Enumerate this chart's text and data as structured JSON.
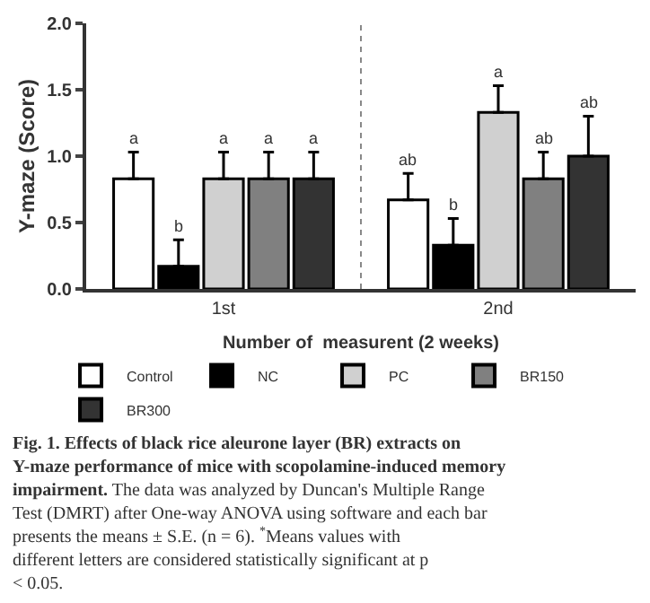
{
  "chart_data": {
    "type": "bar",
    "categories": [
      "1st",
      "2nd"
    ],
    "xlabel": "Number of  measurent (2 weeks)",
    "ylabel": "Y-maze (Score)",
    "ylim": [
      0,
      2
    ],
    "yticks": [
      {
        "value": 0,
        "label": "0.0"
      },
      {
        "value": 0.5,
        "label": "0.5"
      },
      {
        "value": 1,
        "label": "1.0"
      },
      {
        "value": 1.5,
        "label": "1.5"
      },
      {
        "value": 2,
        "label": "2.0"
      }
    ],
    "legend": "bottom",
    "series": [
      {
        "name": "Control",
        "color": "#ffffff",
        "values": [
          0.83,
          0.67
        ],
        "errors": [
          [
            0.83,
            1.03
          ],
          [
            0.67,
            0.87
          ]
        ],
        "value_labels": [
          "a",
          "ab"
        ]
      },
      {
        "name": "NC",
        "color": "#000000",
        "values": [
          0.17,
          0.33
        ],
        "errors": [
          [
            0.17,
            0.37
          ],
          [
            0.33,
            0.53
          ]
        ],
        "value_labels": [
          "b",
          "b"
        ]
      },
      {
        "name": "PC",
        "color": "#d0d0d0",
        "values": [
          0.83,
          1.33
        ],
        "errors": [
          [
            0.83,
            1.03
          ],
          [
            1.33,
            1.53
          ]
        ],
        "value_labels": [
          "a",
          "a"
        ]
      },
      {
        "name": "BR150",
        "color": "#808080",
        "values": [
          0.83,
          0.83
        ],
        "errors": [
          [
            0.83,
            1.03
          ],
          [
            0.83,
            1.03
          ]
        ],
        "value_labels": [
          "a",
          "ab"
        ]
      },
      {
        "name": "BR300",
        "color": "#333333",
        "values": [
          0.83,
          1.0
        ],
        "errors": [
          [
            0.83,
            1.03
          ],
          [
            1.0,
            1.3
          ]
        ],
        "value_labels": [
          "a",
          "ab"
        ]
      }
    ],
    "annotations": [
      "Fig. 1. Effects of black rice aleurone layer (BR) extracts on Y-maze performance of mice with scopolamine-induced memory impairment.",
      "The data was analyzed by Duncan's Multiple Range Test (DMRT) after One-way ANOVA using software and each bar presents the means ± S.E. (n = 6). $^{*}$Means values with different letters are considered statistically significant at p < 0.05."
    ]
  }
}
